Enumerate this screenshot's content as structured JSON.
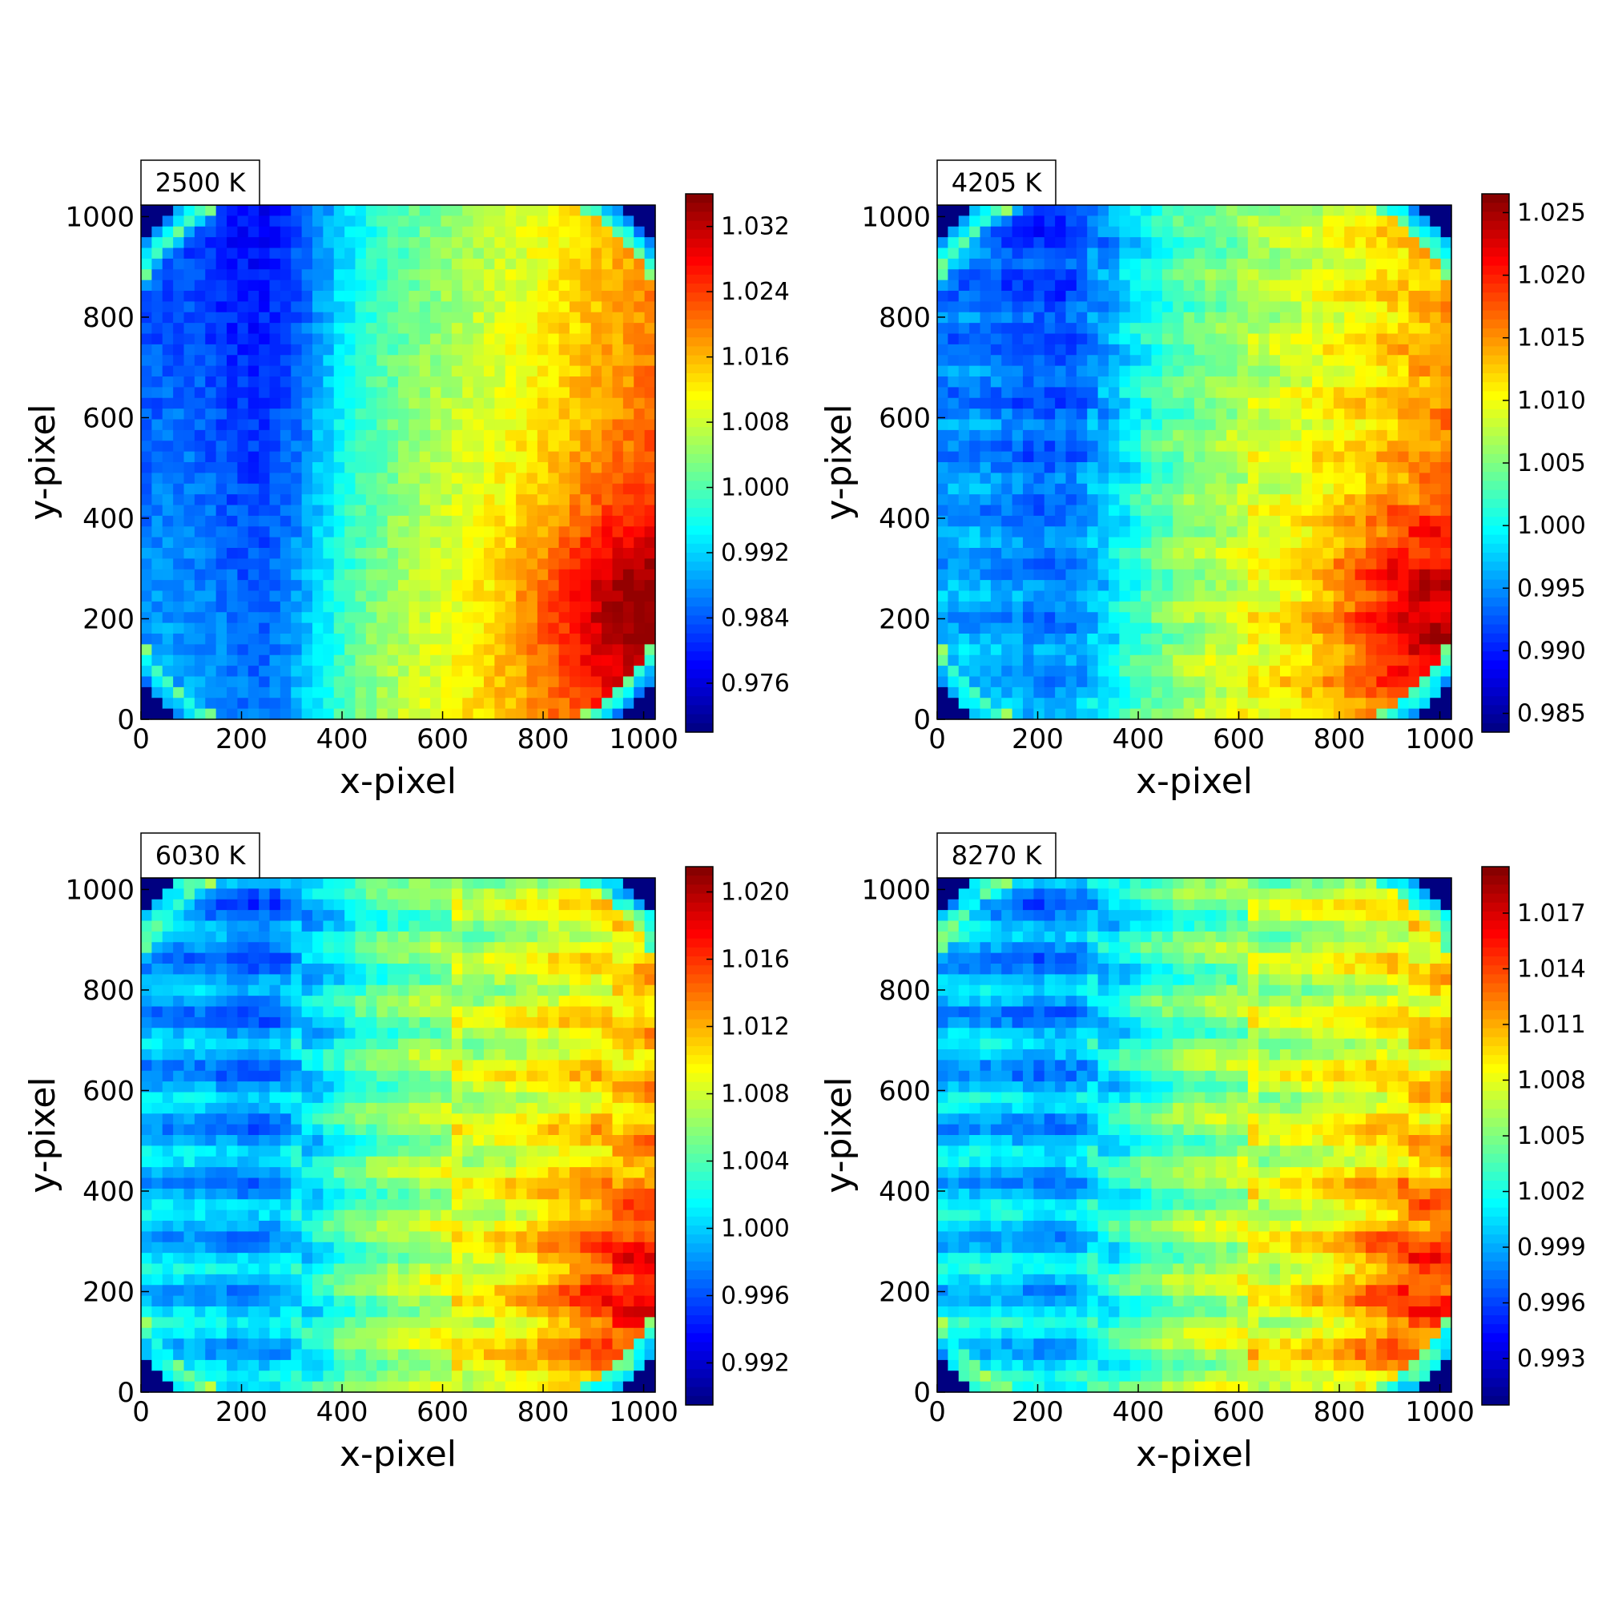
{
  "chart_data": [
    {
      "type": "heatmap",
      "title": "2500 K",
      "xlabel": "x-pixel",
      "ylabel": "y-pixel",
      "xlim": [
        0,
        1023
      ],
      "ylim": [
        0,
        1023
      ],
      "x_ticks": [
        "0",
        "200",
        "400",
        "600",
        "800",
        "1000"
      ],
      "y_ticks": [
        "0",
        "200",
        "400",
        "600",
        "800",
        "1000"
      ],
      "colormap": "jet",
      "color_range": [
        0.97,
        1.036
      ],
      "colorbar_ticks": [
        "1.032",
        "1.024",
        "1.016",
        "1.008",
        "1.000",
        "0.992",
        "0.984",
        "0.976"
      ],
      "colorbar_tick_values": [
        1.032,
        1.024,
        1.016,
        1.008,
        1.0,
        0.992,
        0.984,
        0.976
      ],
      "pattern": "smooth gradient: low (blue) around x≈200-350, high (dark red) at lower right x≈900-1000, y≈150-350; circular vignette with blue background in corners"
    },
    {
      "type": "heatmap",
      "title": "4205 K",
      "xlabel": "x-pixel",
      "ylabel": "y-pixel",
      "xlim": [
        0,
        1023
      ],
      "ylim": [
        0,
        1023
      ],
      "x_ticks": [
        "0",
        "200",
        "400",
        "600",
        "800",
        "1000"
      ],
      "y_ticks": [
        "0",
        "200",
        "400",
        "600",
        "800",
        "1000"
      ],
      "colormap": "jet",
      "color_range": [
        0.9835,
        1.0265
      ],
      "colorbar_ticks": [
        "1.025",
        "1.020",
        "1.015",
        "1.010",
        "1.005",
        "1.000",
        "0.995",
        "0.990",
        "0.985"
      ],
      "colorbar_tick_values": [
        1.025,
        1.02,
        1.015,
        1.01,
        1.005,
        1.0,
        0.995,
        0.99,
        0.985
      ],
      "pattern": "gradient with emerging horizontal striations; high at lower right, low around x≈200-300"
    },
    {
      "type": "heatmap",
      "title": "6030 K",
      "xlabel": "x-pixel",
      "ylabel": "y-pixel",
      "xlim": [
        0,
        1023
      ],
      "ylim": [
        0,
        1023
      ],
      "x_ticks": [
        "0",
        "200",
        "400",
        "600",
        "800",
        "1000"
      ],
      "y_ticks": [
        "0",
        "200",
        "400",
        "600",
        "800",
        "1000"
      ],
      "colormap": "jet",
      "color_range": [
        0.9895,
        1.0215
      ],
      "colorbar_ticks": [
        "1.020",
        "1.016",
        "1.012",
        "1.008",
        "1.004",
        "1.000",
        "0.996",
        "0.992"
      ],
      "colorbar_tick_values": [
        1.02,
        1.016,
        1.012,
        1.008,
        1.004,
        1.0,
        0.996,
        0.992
      ],
      "pattern": "strong tiled horizontal striations with vertical seams near x≈320 and x≈620; high bands at right"
    },
    {
      "type": "heatmap",
      "title": "8270 K",
      "xlabel": "x-pixel",
      "ylabel": "y-pixel",
      "xlim": [
        0,
        1023
      ],
      "ylim": [
        0,
        1023
      ],
      "x_ticks": [
        "0",
        "200",
        "400",
        "600",
        "800",
        "1000"
      ],
      "y_ticks": [
        "0",
        "200",
        "400",
        "600",
        "800",
        "1000"
      ],
      "colormap": "jet",
      "color_range": [
        0.9905,
        1.0195
      ],
      "colorbar_ticks": [
        "1.017",
        "1.014",
        "1.011",
        "1.008",
        "1.005",
        "1.002",
        "0.999",
        "0.996",
        "0.993"
      ],
      "colorbar_tick_values": [
        1.017,
        1.014,
        1.011,
        1.008,
        1.005,
        1.002,
        0.999,
        0.996,
        0.993
      ],
      "pattern": "strong tiled horizontal striations with vertical seams near x≈320 and x≈620; high bands at right"
    }
  ]
}
